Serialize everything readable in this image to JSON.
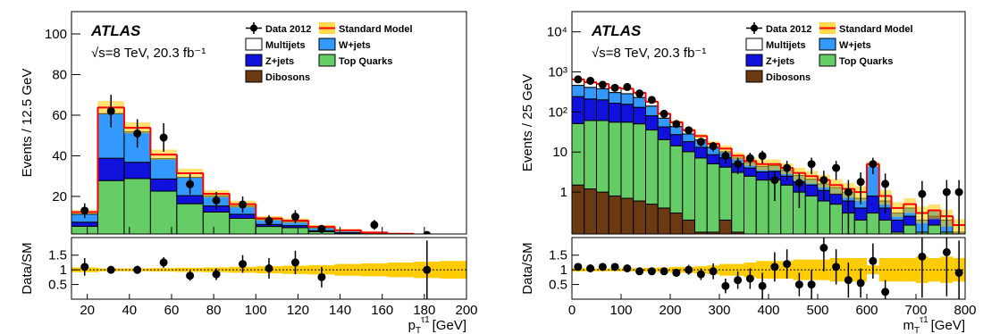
{
  "chart_data": [
    {
      "type": "histogram",
      "atlas_label": "ATLAS",
      "energy_label": "√s=8 TeV, 20.3 fb⁻¹",
      "y_label": "Events / 12.5 GeV",
      "x_label": {
        "symbol": "p",
        "sub": "T",
        "sup": "τ1",
        "unit": "[GeV]"
      },
      "log_y": false,
      "bins": [
        12.5,
        25,
        37.5,
        50,
        62.5,
        75,
        87.5,
        100,
        112.5,
        125,
        137.5,
        150,
        162.5,
        175,
        187.5,
        200
      ],
      "xlim": [
        12.5,
        200
      ],
      "xticks": [
        20,
        40,
        60,
        80,
        100,
        120,
        140,
        160,
        180,
        200
      ],
      "ylim": [
        1.5,
        111
      ],
      "yticks": [
        20,
        40,
        60,
        80,
        100
      ],
      "series": [
        {
          "name": "Dibosons",
          "color": "#6b3a12",
          "values": [
            0.3,
            0.8,
            0.8,
            0.6,
            0.4,
            0.3,
            0.2,
            0.2,
            0.1,
            0.1,
            0.1,
            0,
            0,
            0,
            0
          ]
        },
        {
          "name": "Top Quarks",
          "color": "#66cc66",
          "values": [
            5,
            27,
            28,
            22,
            16,
            12,
            9,
            5,
            4.5,
            2.5,
            1.5,
            1,
            0.8,
            0.5,
            0.4
          ]
        },
        {
          "name": "Z+jets",
          "color": "#1111dd",
          "values": [
            2,
            11,
            8,
            6,
            4,
            3,
            2,
            1,
            1,
            0.5,
            0.5,
            0.3,
            0.2,
            0.2,
            0.1
          ]
        },
        {
          "name": "W+jets",
          "color": "#3399ff",
          "values": [
            4,
            22,
            15,
            10,
            9,
            5,
            4,
            2.5,
            2,
            1.5,
            1,
            0.7,
            0.5,
            0.3,
            0.3
          ]
        },
        {
          "name": "Multijets",
          "color": "#ffffff",
          "values": [
            1,
            3,
            2,
            2,
            2,
            1,
            1,
            0.5,
            0.5,
            0.5,
            0.2,
            0.2,
            0.1,
            0.1,
            0.1
          ]
        }
      ],
      "total": {
        "name": "Standard Model",
        "color": "#ff0000"
      },
      "uncertainty_color": "#ffcc00",
      "uncertainty": [
        0.08,
        0.05,
        0.05,
        0.06,
        0.07,
        0.08,
        0.1,
        0.12,
        0.14,
        0.16,
        0.2,
        0.22,
        0.25,
        0.28,
        0.3
      ],
      "data": {
        "name": "Data 2012",
        "values": [
          13,
          62,
          51,
          49,
          26,
          18,
          16,
          8,
          10,
          4,
          null,
          6,
          null,
          1,
          null
        ],
        "errors": [
          3.6,
          8,
          7,
          7,
          5,
          4.2,
          4,
          2.8,
          3.2,
          2,
          null,
          2.4,
          null,
          1,
          null
        ]
      },
      "ratio": {
        "y_label": "Data/SM",
        "ylim": [
          0,
          2.1
        ],
        "yticks": [
          0.5,
          1,
          1.5
        ],
        "values": [
          1.1,
          1.0,
          1.0,
          1.25,
          0.8,
          0.85,
          1.2,
          1.05,
          1.25,
          0.75,
          null,
          null,
          null,
          1.0,
          null
        ],
        "errors": [
          0.3,
          0.13,
          0.14,
          0.18,
          0.17,
          0.2,
          0.3,
          0.35,
          0.4,
          0.35,
          null,
          null,
          null,
          1.0,
          null
        ]
      }
    },
    {
      "type": "histogram",
      "atlas_label": "ATLAS",
      "energy_label": "√s=8 TeV, 20.3 fb⁻¹",
      "y_label": "Events / 25 GeV",
      "x_label": {
        "symbol": "m",
        "sub": "T",
        "sup": "τ1",
        "unit": "[GeV]"
      },
      "log_y": true,
      "bins": [
        0,
        25,
        50,
        75,
        100,
        125,
        150,
        175,
        200,
        225,
        250,
        275,
        300,
        325,
        350,
        375,
        400,
        425,
        450,
        475,
        500,
        525,
        550,
        575,
        600,
        625,
        650,
        675,
        700,
        725,
        750,
        775,
        800
      ],
      "xlim": [
        0,
        800
      ],
      "xticks": [
        0,
        100,
        200,
        300,
        400,
        500,
        600,
        700,
        800
      ],
      "ylim": [
        0.09,
        32000
      ],
      "yticks": [
        1,
        10,
        {
          "value": 100,
          "label": "10²"
        },
        {
          "value": 1000,
          "label": "10³"
        },
        {
          "value": 10000,
          "label": "10⁴"
        }
      ],
      "series": [
        {
          "name": "Dibosons",
          "color": "#6b3a12",
          "values": [
            1.5,
            1.2,
            1.0,
            0.8,
            0.7,
            0.6,
            0.5,
            0.4,
            0.3,
            0.2,
            0.1,
            0.1,
            0.2,
            0.1,
            0,
            0,
            0,
            0,
            0,
            0,
            0,
            0,
            0,
            0,
            0,
            0,
            0,
            0,
            0,
            0,
            0,
            0
          ]
        },
        {
          "name": "Top Quarks",
          "color": "#66cc66",
          "values": [
            50,
            60,
            60,
            55,
            55,
            50,
            35,
            20,
            14,
            10,
            7,
            5,
            4,
            3,
            2.5,
            2,
            2,
            1.5,
            1,
            0.8,
            0.6,
            0.5,
            0.3,
            0.2,
            0.3,
            0.2,
            0.1,
            0.15,
            0.1,
            0.15,
            0.1,
            0
          ]
        },
        {
          "name": "Z+jets",
          "color": "#1111dd",
          "values": [
            190,
            150,
            140,
            110,
            100,
            80,
            45,
            22,
            13,
            8,
            6,
            3.5,
            3,
            2,
            1.5,
            1.2,
            1.3,
            1,
            0.8,
            0.7,
            0.5,
            0.4,
            0.3,
            0.2,
            0.5,
            0.2,
            0.1,
            0.1,
            0,
            0.1,
            0,
            0.05
          ]
        },
        {
          "name": "W+jets",
          "color": "#3399ff",
          "values": [
            220,
            200,
            180,
            140,
            130,
            100,
            60,
            28,
            16,
            10,
            7,
            4.5,
            3,
            2,
            1.5,
            1.2,
            1.3,
            1,
            0.8,
            0.6,
            0.5,
            0.4,
            0.4,
            0.3,
            4,
            0.2,
            0.1,
            0.15,
            0.1,
            0.1,
            0.1,
            0.05
          ]
        },
        {
          "name": "Multijets",
          "color": "#ffffff",
          "values": [
            190,
            140,
            120,
            95,
            95,
            70,
            40,
            20,
            12,
            7,
            5,
            3,
            2,
            1,
            0.5,
            0.6,
            0.4,
            0.5,
            0.4,
            0.4,
            0.4,
            0.2,
            0.2,
            0.3,
            0.2,
            0.2,
            0.1,
            0.1,
            0.1,
            0,
            0.05,
            0.05
          ]
        }
      ],
      "total": {
        "name": "Standard Model",
        "color": "#ff0000"
      },
      "uncertainty_color": "#ffcc00",
      "uncertainty": [
        0.06,
        0.05,
        0.05,
        0.05,
        0.05,
        0.06,
        0.07,
        0.08,
        0.1,
        0.1,
        0.12,
        0.15,
        0.2,
        0.2,
        0.25,
        0.3,
        0.3,
        0.3,
        0.35,
        0.35,
        0.35,
        0.4,
        0.4,
        0.4,
        0.15,
        0.4,
        0.4,
        0.4,
        0.45,
        0.4,
        0.45,
        0.4
      ],
      "data": {
        "name": "Data 2012",
        "values": [
          650,
          600,
          480,
          400,
          420,
          290,
          200,
          90,
          50,
          35,
          18,
          14,
          8,
          5,
          7,
          8,
          2,
          4,
          1.7,
          5,
          2,
          4,
          1,
          1.8,
          5,
          1.6,
          null,
          null,
          0.9,
          null,
          1,
          1
        ],
        "errors": [
          25,
          25,
          22,
          20,
          20,
          17,
          14,
          9.5,
          7,
          6,
          4.2,
          3.7,
          2.8,
          2.2,
          2.6,
          2.8,
          1.4,
          2,
          1.3,
          2.2,
          1.4,
          2,
          1,
          1.3,
          2.2,
          1.3,
          null,
          null,
          1,
          null,
          1,
          1
        ]
      },
      "ratio": {
        "y_label": "Data/SM",
        "ylim": [
          0,
          2.1
        ],
        "yticks": [
          0.5,
          1,
          1.5
        ],
        "values": [
          1.1,
          1.05,
          1.1,
          1.1,
          1.05,
          0.95,
          0.95,
          0.95,
          0.9,
          1.0,
          0.85,
          0.95,
          0.45,
          0.65,
          0.7,
          0.45,
          1.1,
          1.2,
          0.5,
          0.5,
          1.75,
          1.1,
          0.65,
          0.55,
          1.3,
          0.25,
          null,
          null,
          1.45,
          null,
          1.6,
          0.9
        ],
        "errors": [
          0.05,
          0.05,
          0.05,
          0.05,
          0.05,
          0.06,
          0.07,
          0.1,
          0.13,
          0.17,
          0.2,
          0.27,
          0.25,
          0.3,
          0.35,
          0.45,
          0.5,
          0.5,
          0.4,
          0.5,
          0.8,
          0.6,
          0.6,
          0.5,
          0.6,
          0.4,
          null,
          null,
          1.4,
          null,
          1.5,
          1.1
        ]
      }
    }
  ]
}
